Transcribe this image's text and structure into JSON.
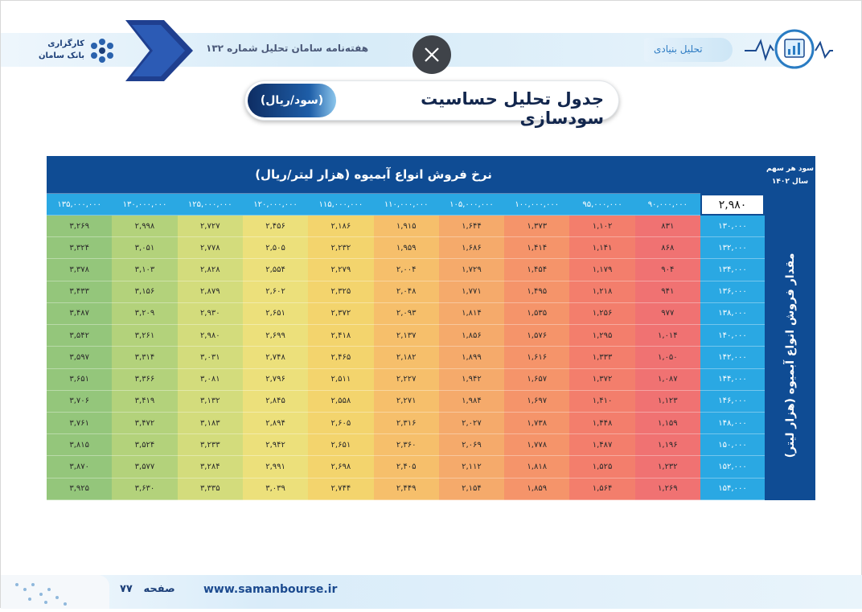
{
  "header": {
    "section": "تحلیل بنیادی",
    "newsletter": "هفته‌نامه سامان تحلیل شماره ۱۳۲",
    "logo_line1": "کارگزاری",
    "logo_line2": "بانک سامان"
  },
  "title": {
    "main": "جدول تحلیل حساسیت سودسازی",
    "unit": "(سود/ریال)"
  },
  "table": {
    "corner_label": [
      "سود هر سهم",
      "سال ۱۴۰۲"
    ],
    "corner_value": "۲,۹۸۰",
    "column_title": "نرخ فروش انواع آبمیوه (هزار لیتر/ریال)",
    "row_title": "مقدار فروش انواع آبمیوه (هزار لیتر)",
    "columns": [
      "۹۰,۰۰۰,۰۰۰",
      "۹۵,۰۰۰,۰۰۰",
      "۱۰۰,۰۰۰,۰۰۰",
      "۱۰۵,۰۰۰,۰۰۰",
      "۱۱۰,۰۰۰,۰۰۰",
      "۱۱۵,۰۰۰,۰۰۰",
      "۱۲۰,۰۰۰,۰۰۰",
      "۱۲۵,۰۰۰,۰۰۰",
      "۱۳۰,۰۰۰,۰۰۰",
      "۱۳۵,۰۰۰,۰۰۰"
    ],
    "rows": [
      {
        "label": "۱۳۰,۰۰۰",
        "values": [
          "۸۳۱",
          "۱,۱۰۲",
          "۱,۳۷۳",
          "۱,۶۴۴",
          "۱,۹۱۵",
          "۲,۱۸۶",
          "۲,۴۵۶",
          "۲,۷۲۷",
          "۲,۹۹۸",
          "۳,۲۶۹"
        ]
      },
      {
        "label": "۱۳۲,۰۰۰",
        "values": [
          "۸۶۸",
          "۱,۱۴۱",
          "۱,۴۱۴",
          "۱,۶۸۶",
          "۱,۹۵۹",
          "۲,۲۳۲",
          "۲,۵۰۵",
          "۲,۷۷۸",
          "۳,۰۵۱",
          "۳,۳۲۴"
        ]
      },
      {
        "label": "۱۳۴,۰۰۰",
        "values": [
          "۹۰۴",
          "۱,۱۷۹",
          "۱,۴۵۴",
          "۱,۷۲۹",
          "۲,۰۰۴",
          "۲,۲۷۹",
          "۲,۵۵۴",
          "۲,۸۲۸",
          "۳,۱۰۳",
          "۳,۳۷۸"
        ]
      },
      {
        "label": "۱۳۶,۰۰۰",
        "values": [
          "۹۴۱",
          "۱,۲۱۸",
          "۱,۴۹۵",
          "۱,۷۷۱",
          "۲,۰۴۸",
          "۲,۳۲۵",
          "۲,۶۰۲",
          "۲,۸۷۹",
          "۳,۱۵۶",
          "۳,۴۳۳"
        ]
      },
      {
        "label": "۱۳۸,۰۰۰",
        "values": [
          "۹۷۷",
          "۱,۲۵۶",
          "۱,۵۳۵",
          "۱,۸۱۴",
          "۲,۰۹۳",
          "۲,۳۷۲",
          "۲,۶۵۱",
          "۲,۹۳۰",
          "۳,۲۰۹",
          "۳,۴۸۷"
        ]
      },
      {
        "label": "۱۴۰,۰۰۰",
        "values": [
          "۱,۰۱۴",
          "۱,۲۹۵",
          "۱,۵۷۶",
          "۱,۸۵۶",
          "۲,۱۳۷",
          "۲,۴۱۸",
          "۲,۶۹۹",
          "۲,۹۸۰",
          "۳,۲۶۱",
          "۳,۵۴۲"
        ]
      },
      {
        "label": "۱۴۲,۰۰۰",
        "values": [
          "۱,۰۵۰",
          "۱,۳۳۳",
          "۱,۶۱۶",
          "۱,۸۹۹",
          "۲,۱۸۲",
          "۲,۴۶۵",
          "۲,۷۴۸",
          "۳,۰۳۱",
          "۳,۳۱۴",
          "۳,۵۹۷"
        ]
      },
      {
        "label": "۱۴۴,۰۰۰",
        "values": [
          "۱,۰۸۷",
          "۱,۳۷۲",
          "۱,۶۵۷",
          "۱,۹۴۲",
          "۲,۲۲۷",
          "۲,۵۱۱",
          "۲,۷۹۶",
          "۳,۰۸۱",
          "۳,۳۶۶",
          "۳,۶۵۱"
        ]
      },
      {
        "label": "۱۴۶,۰۰۰",
        "values": [
          "۱,۱۲۳",
          "۱,۴۱۰",
          "۱,۶۹۷",
          "۱,۹۸۴",
          "۲,۲۷۱",
          "۲,۵۵۸",
          "۲,۸۴۵",
          "۳,۱۳۲",
          "۳,۴۱۹",
          "۳,۷۰۶"
        ]
      },
      {
        "label": "۱۴۸,۰۰۰",
        "values": [
          "۱,۱۵۹",
          "۱,۴۴۸",
          "۱,۷۳۸",
          "۲,۰۲۷",
          "۲,۳۱۶",
          "۲,۶۰۵",
          "۲,۸۹۴",
          "۳,۱۸۳",
          "۳,۴۷۲",
          "۳,۷۶۱"
        ]
      },
      {
        "label": "۱۵۰,۰۰۰",
        "values": [
          "۱,۱۹۶",
          "۱,۴۸۷",
          "۱,۷۷۸",
          "۲,۰۶۹",
          "۲,۳۶۰",
          "۲,۶۵۱",
          "۲,۹۴۲",
          "۳,۲۳۳",
          "۳,۵۲۴",
          "۳,۸۱۵"
        ]
      },
      {
        "label": "۱۵۲,۰۰۰",
        "values": [
          "۱,۲۳۲",
          "۱,۵۲۵",
          "۱,۸۱۸",
          "۲,۱۱۲",
          "۲,۴۰۵",
          "۲,۶۹۸",
          "۲,۹۹۱",
          "۳,۲۸۴",
          "۳,۵۷۷",
          "۳,۸۷۰"
        ]
      },
      {
        "label": "۱۵۴,۰۰۰",
        "values": [
          "۱,۲۶۹",
          "۱,۵۶۴",
          "۱,۸۵۹",
          "۲,۱۵۴",
          "۲,۴۴۹",
          "۲,۷۴۴",
          "۳,۰۳۹",
          "۳,۳۳۵",
          "۳,۶۳۰",
          "۳,۹۲۵"
        ]
      }
    ]
  },
  "footer": {
    "url": "www.samanbourse.ir",
    "page_label": "صفحه",
    "page_number": "۷۷"
  }
}
